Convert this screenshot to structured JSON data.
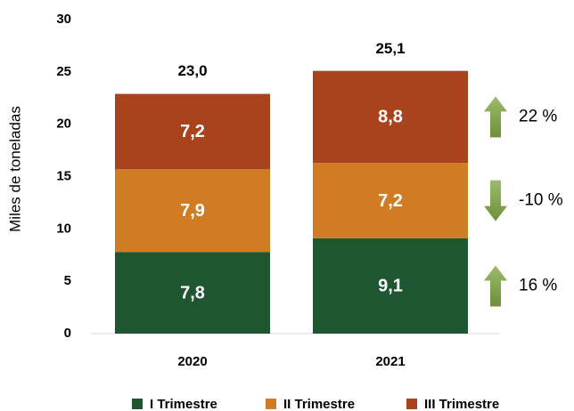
{
  "chart_data": {
    "type": "stacked_bar",
    "y_label": "Miles de toneladas",
    "categories": [
      "2020",
      "2021"
    ],
    "series": [
      {
        "name": "I Trimestre",
        "color": "#1e5631",
        "values": [
          7.8,
          9.1
        ],
        "value_labels": [
          "7,8",
          "9,1"
        ],
        "change": 16,
        "change_label": "16 %"
      },
      {
        "name": "II Trimestre",
        "color": "#d07c25",
        "values": [
          7.9,
          7.2
        ],
        "value_labels": [
          "7,9",
          "7,2"
        ],
        "change": -10,
        "change_label": "-10 %"
      },
      {
        "name": "III Trimestre",
        "color": "#a9431e",
        "values": [
          7.2,
          8.8
        ],
        "value_labels": [
          "7,2",
          "8,8"
        ],
        "change": 22,
        "change_label": "22 %"
      }
    ],
    "totals": [
      23.0,
      25.1
    ],
    "total_labels": [
      "23,0",
      "25,1"
    ],
    "arrow_color": "#8aab55",
    "ylim": [
      0,
      30
    ],
    "yticks": [
      0,
      5,
      10,
      15,
      20,
      25,
      30
    ],
    "grid": false
  }
}
